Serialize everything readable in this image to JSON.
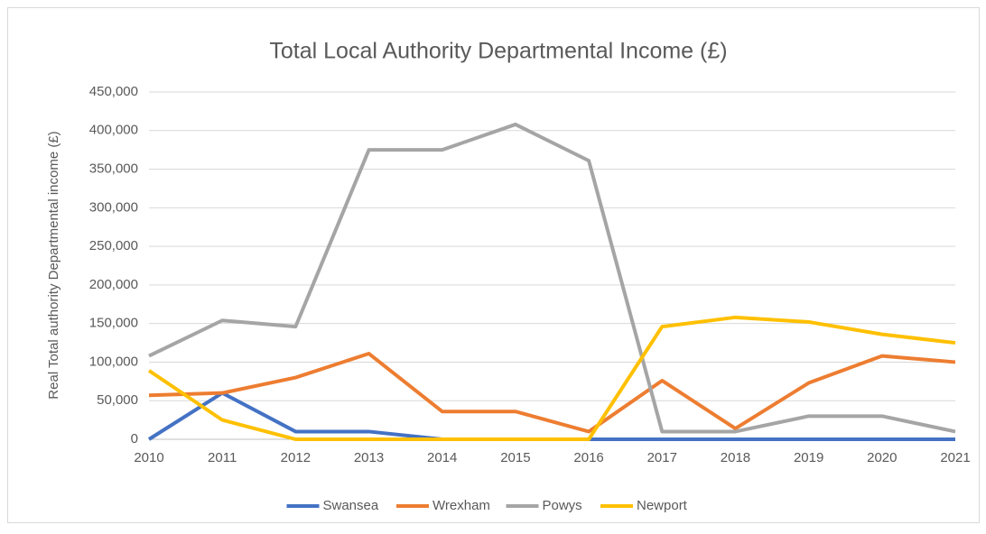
{
  "chart_data": {
    "type": "line",
    "title": "Total Local Authority Departmental Income (£)",
    "ylabel": "Real Total authority Departmental income (£)",
    "x": [
      2010,
      2011,
      2012,
      2013,
      2014,
      2015,
      2016,
      2017,
      2018,
      2019,
      2020,
      2021
    ],
    "xlim": [
      2010,
      2021
    ],
    "xticks": [
      2010,
      2011,
      2012,
      2013,
      2014,
      2015,
      2016,
      2017,
      2018,
      2019,
      2020,
      2021
    ],
    "ylim": [
      0,
      450000
    ],
    "yticks": [
      0,
      {
        "value": 50000,
        "label": "50,000"
      },
      {
        "value": 100000,
        "label": "100,000"
      },
      {
        "value": 150000,
        "label": "150,000"
      },
      {
        "value": 200000,
        "label": "200,000"
      },
      {
        "value": 250000,
        "label": "250,000"
      },
      {
        "value": 300000,
        "label": "300,000"
      },
      {
        "value": 350000,
        "label": "350,000"
      },
      {
        "value": 400000,
        "label": "400,000"
      },
      {
        "value": 450000,
        "label": "450,000"
      }
    ],
    "grid": true,
    "legend": "bottom",
    "series": [
      {
        "name": "Swansea",
        "color": "#4472c4",
        "values": [
          0,
          60000,
          10000,
          10000,
          0,
          0,
          0,
          0,
          0,
          0,
          0,
          0
        ]
      },
      {
        "name": "Wrexham",
        "color": "#ed7d31",
        "values": [
          57000,
          60000,
          80000,
          111000,
          36000,
          36000,
          10000,
          76000,
          14000,
          73000,
          108000,
          100000
        ]
      },
      {
        "name": "Powys",
        "color": "#a5a5a5",
        "values": [
          108000,
          154000,
          146000,
          375000,
          375000,
          408000,
          361000,
          10000,
          10000,
          30000,
          30000,
          10000
        ]
      },
      {
        "name": "Newport",
        "color": "#ffc000",
        "values": [
          89000,
          25000,
          0,
          0,
          0,
          0,
          0,
          146000,
          158000,
          152000,
          136000,
          125000
        ]
      }
    ]
  }
}
